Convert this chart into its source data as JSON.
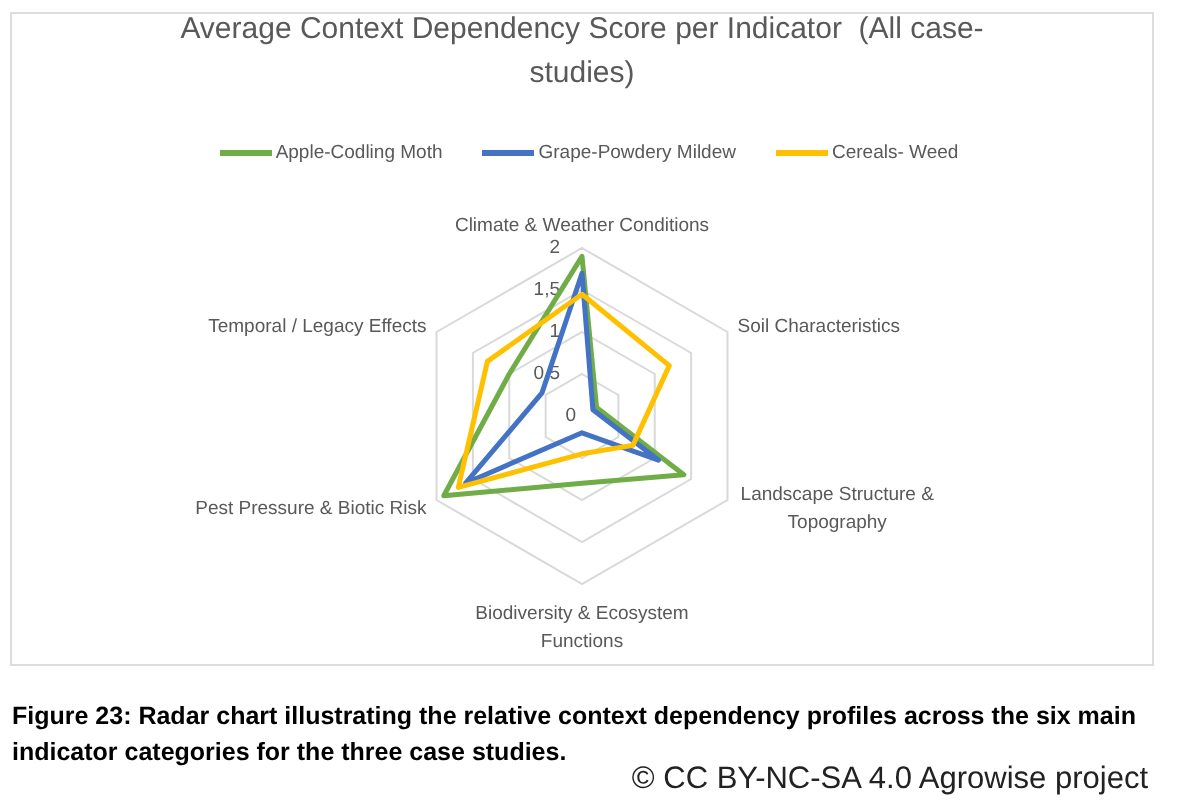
{
  "chart_data": {
    "type": "radar",
    "title": "Average Context Dependency Score per Indicator  (All case-studies)",
    "categories": [
      "Climate & Weather Conditions",
      "Soil Characteristics",
      "Landscape Structure & Topography",
      "Biodiversity & Ecosystem Functions",
      "Pest Pressure & Biotic Risk",
      "Temporal / Legacy Effects"
    ],
    "series": [
      {
        "name": "Apple-Codling Moth",
        "color": "#70ad47",
        "values": [
          1.9,
          0.2,
          1.4,
          0.8,
          1.9,
          1.0
        ]
      },
      {
        "name": "Grape-Powdery Mildew",
        "color": "#4472c4",
        "values": [
          1.7,
          0.15,
          1.05,
          0.2,
          1.6,
          0.55
        ]
      },
      {
        "name": "Cereals- Weed",
        "color": "#ffc000",
        "values": [
          1.45,
          1.2,
          0.7,
          0.45,
          1.7,
          1.3
        ]
      }
    ],
    "ylim": [
      0,
      2
    ],
    "yticks": [
      0,
      {
        "value": 0.5,
        "label": "0,5"
      },
      1,
      {
        "value": 1.5,
        "label": "1,5"
      },
      2
    ],
    "grid": true,
    "legend": "top",
    "annotations": [
      "Figure 23: Radar chart illustrating the relative context dependency profiles across the six main indicator categories for the three case studies.",
      "© CC BY-NC-SA 4.0 Agrowise project"
    ]
  }
}
